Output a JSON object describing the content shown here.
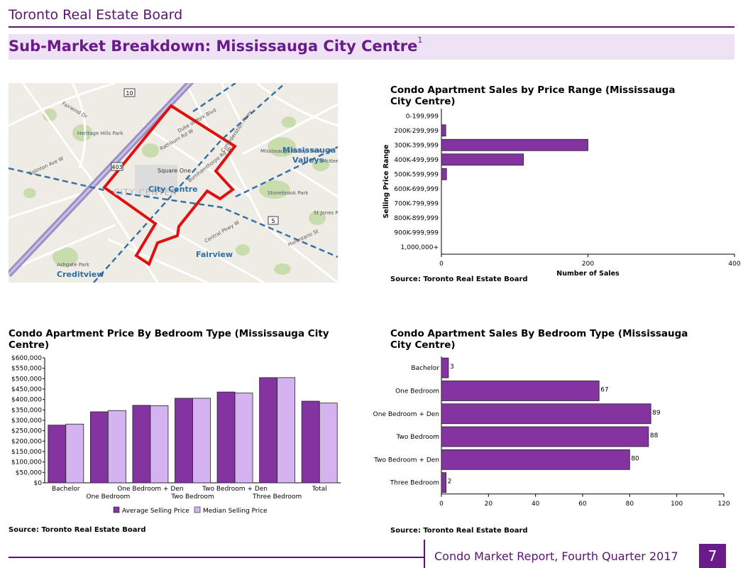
{
  "header": {
    "org": "Toronto Real Estate Board",
    "title": "Sub-Market Breakdown: Mississauga City Centre",
    "footnote": "1"
  },
  "map": {
    "labels": {
      "city_centre": "City Centre",
      "city_center_faint": "CITY CENTER",
      "square_one": "Square One",
      "mississauga": "Mississauga",
      "valleys": "Valleys",
      "fairview": "Fairview",
      "creditview": "Creditview",
      "heritage_hills": "Heritage Hills Park",
      "stonebrook": "Stonebrook Park",
      "mississauga_valleys_park": "Mississauga Valleys Park",
      "ashgate": "Ashgate Park",
      "st_jones": "St Jones Park",
      "mckee": "McKee Park",
      "eglinton": "Eglinton Ave W",
      "burnhamthorpe": "Burnhamthorpe Rd W",
      "hurontario": "Hurontario St",
      "central_pkwy": "Central Pkwy W",
      "confederation": "Confederation Pkwy",
      "fairwind": "Fairwind Dr",
      "rathburn": "Rathburn Rd W",
      "duke": "Duke of York Blvd",
      "hwy10": "10",
      "hwy403": "403",
      "hwy5": "5"
    }
  },
  "chart_data": [
    {
      "type": "bar",
      "orientation": "horizontal",
      "title": "Condo Apartment Sales by Price Range (Mississauga City Centre)",
      "categories": [
        "0-199,999",
        "200K-299,999",
        "300K-399,999",
        "400K-499,999",
        "500K-599,999",
        "600K-699,999",
        "700K-799,999",
        "800K-899,999",
        "900K-999,999",
        "1,000,000+"
      ],
      "values": [
        0,
        6,
        200,
        112,
        7,
        0,
        0,
        0,
        0,
        0
      ],
      "xlabel": "Number of Sales",
      "ylabel": "Selling Price Range",
      "xlim": [
        0,
        400
      ],
      "xticks": [
        "0",
        "200",
        "400"
      ],
      "color": "#8334a0",
      "source": "Source: Toronto Real Estate Board"
    },
    {
      "type": "bar",
      "orientation": "vertical",
      "title": "Condo Apartment Price By Bedroom Type (Mississauga City Centre)",
      "categories": [
        "Bachelor",
        "One Bedroom",
        "One Bedroom + Den",
        "Two Bedroom",
        "Two Bedroom + Den",
        "Three Bedroom",
        "Total"
      ],
      "series": [
        {
          "name": "Average Selling Price",
          "color": "#8334a0",
          "values": [
            277000,
            341000,
            372000,
            406000,
            436000,
            505000,
            392000
          ]
        },
        {
          "name": "Median Selling Price",
          "color": "#d5b3f0",
          "values": [
            282000,
            347000,
            370000,
            406000,
            431000,
            505000,
            383000
          ]
        }
      ],
      "ylim": [
        0,
        600000
      ],
      "yticks": [
        "$0",
        "$50,000",
        "$100,000",
        "$150,000",
        "$200,000",
        "$250,000",
        "$300,000",
        "$350,000",
        "$400,000",
        "$450,000",
        "$500,000",
        "$550,000",
        "$600,000"
      ],
      "source": "Source: Toronto Real Estate Board"
    },
    {
      "type": "bar",
      "orientation": "horizontal",
      "title": "Condo Apartment Sales By Bedroom Type (Mississauga City Centre)",
      "categories": [
        "Bachelor",
        "One Bedroom",
        "One Bedroom + Den",
        "Two Bedroom",
        "Two Bedroom + Den",
        "Three Bedroom"
      ],
      "values": [
        3,
        67,
        89,
        88,
        80,
        2
      ],
      "value_labels": [
        "3",
        "67",
        "89",
        "88",
        "80",
        "2"
      ],
      "xlim": [
        0,
        120
      ],
      "xticks": [
        "0",
        "20",
        "40",
        "60",
        "80",
        "100",
        "120"
      ],
      "color": "#8334a0",
      "source": "Source: Toronto Real Estate Board"
    }
  ],
  "footer": {
    "report": "Condo Market Report, Fourth Quarter 2017",
    "page": "7"
  }
}
